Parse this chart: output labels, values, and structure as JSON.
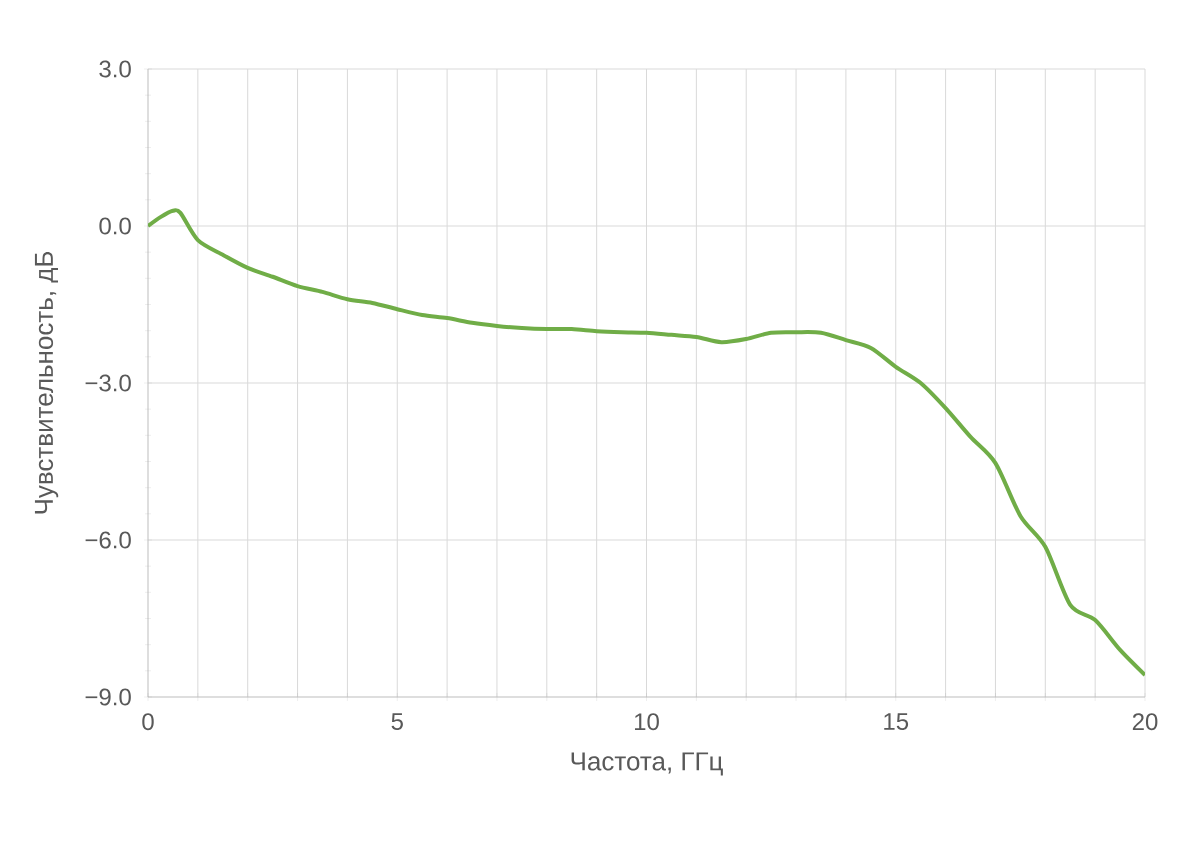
{
  "chart_data": {
    "type": "line",
    "xlabel": "Частота, ГГц",
    "ylabel": "Чувствительность, дБ",
    "x": [
      0,
      0.25,
      0.5,
      0.65,
      1,
      1.5,
      2,
      2.5,
      3,
      3.5,
      4,
      4.5,
      5,
      5.5,
      6,
      6.5,
      7,
      7.5,
      8,
      8.5,
      9,
      9.5,
      10,
      10.5,
      11,
      11.5,
      12,
      12.5,
      13,
      13.5,
      14,
      14.5,
      15,
      15.5,
      16,
      16.5,
      17,
      17.5,
      18,
      18.5,
      19,
      19.5,
      20
    ],
    "values": [
      0,
      0.17,
      0.29,
      0.25,
      -0.27,
      -0.55,
      -0.8,
      -0.97,
      -1.15,
      -1.26,
      -1.4,
      -1.47,
      -1.59,
      -1.7,
      -1.76,
      -1.85,
      -1.91,
      -1.95,
      -1.97,
      -1.97,
      -2.01,
      -2.03,
      -2.04,
      -2.08,
      -2.12,
      -2.22,
      -2.16,
      -2.04,
      -2.03,
      -2.04,
      -2.18,
      -2.33,
      -2.69,
      -3.0,
      -3.48,
      -4.03,
      -4.53,
      -5.54,
      -6.13,
      -7.24,
      -7.53,
      -8.1,
      -8.58
    ],
    "color": "#70ad47",
    "xlim": [
      0,
      20
    ],
    "xticks": [
      0,
      {
        "value": 1,
        "label": null
      },
      {
        "value": 2,
        "label": null
      },
      {
        "value": 3,
        "label": null
      },
      {
        "value": 4,
        "label": null
      },
      5,
      {
        "value": 6,
        "label": null
      },
      {
        "value": 7,
        "label": null
      },
      {
        "value": 8,
        "label": null
      },
      {
        "value": 9,
        "label": null
      },
      10,
      {
        "value": 11,
        "label": null
      },
      {
        "value": 12,
        "label": null
      },
      {
        "value": 13,
        "label": null
      },
      {
        "value": 14,
        "label": null
      },
      15,
      {
        "value": 16,
        "label": null
      },
      {
        "value": 17,
        "label": null
      },
      {
        "value": 18,
        "label": null
      },
      {
        "value": 19,
        "label": null
      },
      20
    ],
    "ylim": [
      -9,
      3
    ],
    "yticks": [
      {
        "value": 3,
        "label": "3.0"
      },
      {
        "value": 0,
        "label": "0.0"
      },
      {
        "value": -3,
        "label": "−3.0"
      },
      {
        "value": -6,
        "label": "−6.0"
      },
      {
        "value": -9,
        "label": "−9.0"
      }
    ],
    "grid": true,
    "marker": "none",
    "line_style": "solid"
  }
}
